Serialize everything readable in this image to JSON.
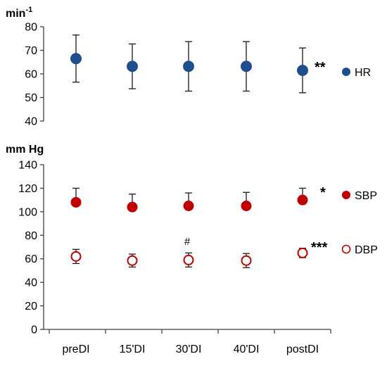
{
  "chart_data": [
    {
      "type": "scatter",
      "unit": "min",
      "unit_sup": "-1",
      "categories": [
        "preDI",
        "15'DI",
        "30'DI",
        "40'DI",
        "postDI"
      ],
      "ylim": [
        40,
        80
      ],
      "yticks": [
        40,
        50,
        60,
        70,
        80
      ],
      "series": [
        {
          "name": "HR",
          "marker": "filled-circle",
          "color": "#1f4e8c",
          "values": [
            66.5,
            63.2,
            63.2,
            63.2,
            61.5
          ],
          "error": [
            10,
            9.5,
            10.5,
            10.5,
            9.5
          ],
          "annotations": [
            {
              "index": 4,
              "text": "**"
            }
          ]
        }
      ]
    },
    {
      "type": "scatter",
      "unit": "mm Hg",
      "categories": [
        "preDI",
        "15'DI",
        "30'DI",
        "40'DI",
        "postDI"
      ],
      "ylim": [
        0,
        140
      ],
      "yticks": [
        0,
        20,
        40,
        60,
        80,
        100,
        120,
        140
      ],
      "series": [
        {
          "name": "SBP",
          "marker": "filled-circle",
          "color": "#c00000",
          "values": [
            108,
            104,
            105,
            105,
            110
          ],
          "error": [
            12,
            11,
            11,
            11.5,
            10
          ],
          "annotations": [
            {
              "index": 4,
              "text": "*"
            }
          ]
        },
        {
          "name": "DBP",
          "marker": "open-circle",
          "color": "#c00000",
          "values": [
            62,
            58.5,
            59,
            58.5,
            65
          ],
          "error": [
            6,
            5.5,
            6,
            6,
            4
          ],
          "annotations": [
            {
              "index": 2,
              "text": "#"
            },
            {
              "index": 4,
              "text": "***"
            }
          ]
        }
      ]
    }
  ]
}
